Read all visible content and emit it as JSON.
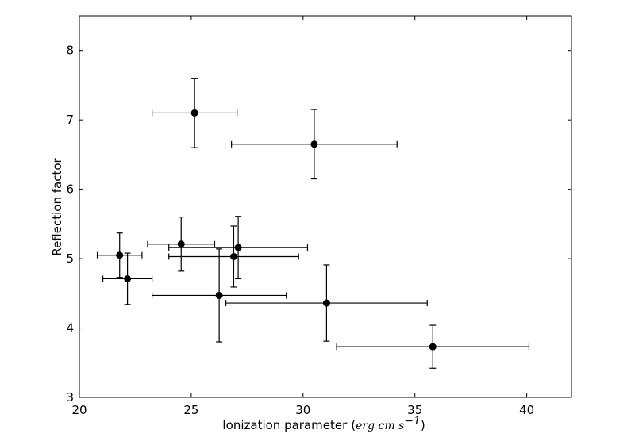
{
  "chart_data": {
    "type": "scatter",
    "xlabel": "Ionization parameter",
    "xlabel_units_open": "(",
    "xlabel_units_var": "erg cm s",
    "xlabel_units_exp": "−1",
    "xlabel_units_close": ")",
    "ylabel": "Reflection factor",
    "xlim": [
      20,
      42
    ],
    "ylim": [
      3,
      8.5
    ],
    "xticks": [
      "20",
      "25",
      "30",
      "35",
      "40"
    ],
    "yticks": [
      "3",
      "4",
      "5",
      "6",
      "7",
      "8"
    ],
    "grid": false,
    "marker_color": "#000000",
    "points": [
      {
        "x": 25.15,
        "y": 7.1,
        "xerr": [
          1.9,
          1.9
        ],
        "yerr": [
          0.5,
          0.5
        ]
      },
      {
        "x": 30.5,
        "y": 6.65,
        "xerr": [
          3.7,
          3.7
        ],
        "yerr": [
          0.5,
          0.5
        ]
      },
      {
        "x": 21.8,
        "y": 5.05,
        "xerr": [
          1.0,
          1.0
        ],
        "yerr": [
          0.32,
          0.32
        ]
      },
      {
        "x": 22.15,
        "y": 4.71,
        "xerr": [
          1.1,
          1.1
        ],
        "yerr": [
          0.37,
          0.37
        ]
      },
      {
        "x": 24.55,
        "y": 5.21,
        "xerr": [
          1.5,
          1.5
        ],
        "yerr": [
          0.39,
          0.39
        ]
      },
      {
        "x": 27.1,
        "y": 5.16,
        "xerr": [
          3.1,
          3.1
        ],
        "yerr": [
          0.45,
          0.45
        ]
      },
      {
        "x": 26.9,
        "y": 5.03,
        "xerr": [
          2.9,
          2.9
        ],
        "yerr": [
          0.44,
          0.44
        ]
      },
      {
        "x": 26.25,
        "y": 4.47,
        "xerr": [
          3.0,
          3.0
        ],
        "yerr": [
          0.67,
          0.67
        ]
      },
      {
        "x": 31.05,
        "y": 4.36,
        "xerr": [
          4.5,
          4.5
        ],
        "yerr": [
          0.55,
          0.55
        ]
      },
      {
        "x": 35.8,
        "y": 3.73,
        "xerr": [
          4.3,
          4.3
        ],
        "yerr": [
          0.31,
          0.31
        ]
      }
    ]
  }
}
